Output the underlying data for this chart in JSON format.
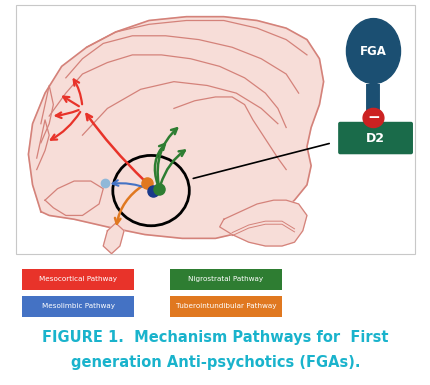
{
  "background_color": "#ffffff",
  "title_color": "#1ab3cc",
  "title_fontsize": 10.5,
  "legend_items": [
    {
      "label": "Mesocortical Pathway",
      "color": "#e8332a",
      "col": 0,
      "row": 0
    },
    {
      "label": "Mesolimbic Pathway",
      "color": "#4472c4",
      "col": 0,
      "row": 1
    },
    {
      "label": "Nigrostratal Pathway",
      "color": "#2e7d32",
      "col": 1,
      "row": 0
    },
    {
      "label": "Tuberointundibular Pathway",
      "color": "#e07820",
      "col": 1,
      "row": 1
    }
  ],
  "fga_label": "FGA",
  "fga_color": "#1b4f72",
  "fga_stem_color": "#1b4f72",
  "d2_label": "D2",
  "d2_color": "#1a6b4a",
  "inhibit_color": "#cc2222",
  "red_color": "#e8332a",
  "green_color": "#2e7d32",
  "blue_color": "#4472c4",
  "orange_color": "#e07820",
  "brain_fill": "#f7ddd8",
  "brain_edge": "#d4827a",
  "gyri_color": "#d4827a",
  "black": "#000000",
  "light_blue": "#90b8d8",
  "box_border": "#c8c8c8"
}
